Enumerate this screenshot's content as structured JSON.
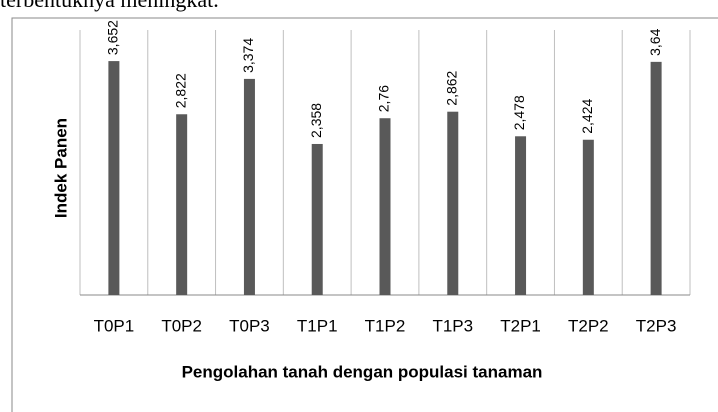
{
  "page_text": "terbentuknya meningkat.",
  "chart_data": {
    "type": "bar",
    "x_label": "Pengolahan tanah dengan populasi tanaman",
    "y_label": "Indek Panen",
    "categories": [
      "T0P1",
      "T0P2",
      "T0P3",
      "T1P1",
      "T1P2",
      "T1P3",
      "T2P1",
      "T2P2",
      "T2P3"
    ],
    "values": [
      3.652,
      2.822,
      3.374,
      2.358,
      2.76,
      2.862,
      2.478,
      2.424,
      3.64
    ],
    "value_labels": [
      "3,652",
      "2,822",
      "3,374",
      "2,358",
      "2,76",
      "2,862",
      "2,478",
      "2,424",
      "3,64"
    ],
    "color": "#595959",
    "ylim": [
      0,
      4.2
    ]
  }
}
